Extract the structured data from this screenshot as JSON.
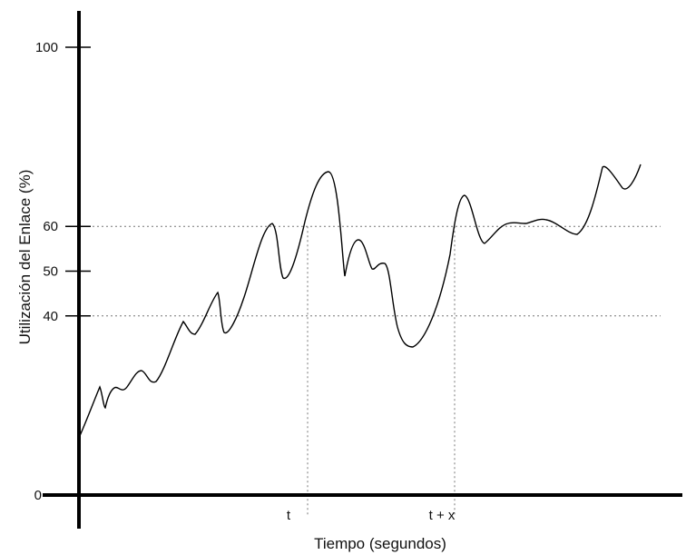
{
  "chart_data": {
    "type": "line",
    "title": "",
    "xlabel": "Tiempo (segundos)",
    "ylabel": "Utilización del Enlace (%)",
    "ylim": [
      0,
      100
    ],
    "y_ticks": [
      {
        "value": 0,
        "label": "0"
      },
      {
        "value": 40,
        "label": "40"
      },
      {
        "value": 50,
        "label": "50"
      },
      {
        "value": 60,
        "label": "60"
      },
      {
        "value": 100,
        "label": "100"
      }
    ],
    "x_markers": [
      {
        "id": "t",
        "label": "t"
      },
      {
        "id": "tx",
        "label": "t + x"
      }
    ],
    "threshold_lines": [
      40,
      60
    ],
    "grid": false
  }
}
